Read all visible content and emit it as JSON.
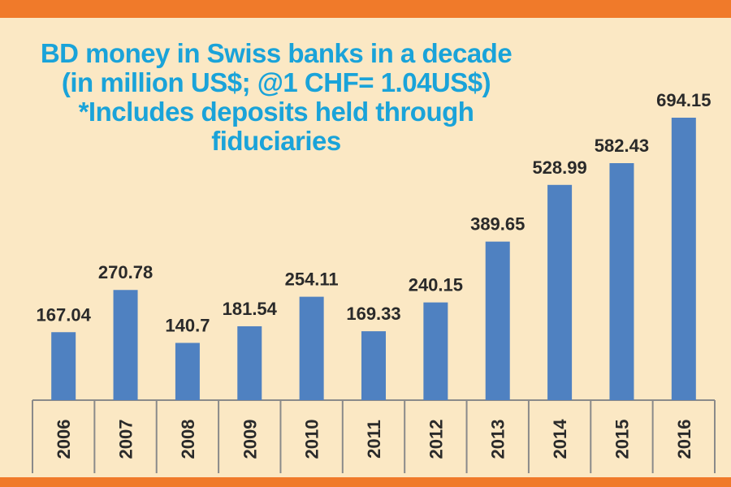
{
  "chart_data": {
    "type": "bar",
    "title": "BD money in Swiss banks in a decade",
    "subtitle": "(in million US$;  @1 CHF= 1.04US$)",
    "note_line1": "*Includes deposits held through",
    "note_line2": "fiduciaries",
    "categories": [
      "2006",
      "2007",
      "2008",
      "2009",
      "2010",
      "2011",
      "2012",
      "2013",
      "2014",
      "2015",
      "2016"
    ],
    "values": [
      167.04,
      270.78,
      140.7,
      181.54,
      254.11,
      169.33,
      240.15,
      389.65,
      528.99,
      582.43,
      694.15
    ],
    "labels": [
      "167.04",
      "270.78",
      "140.7",
      "181.54",
      "254.11",
      "169.33",
      "240.15",
      "389.65",
      "528.99",
      "582.43",
      "694.15"
    ],
    "xlabel": "",
    "ylabel": "",
    "ylim": [
      0,
      694.15
    ],
    "grid": false,
    "colors": {
      "bar": "#4f81c1",
      "title": "#1aa3d9",
      "band": "#f07a2a",
      "background": "#fbe8c4"
    }
  }
}
